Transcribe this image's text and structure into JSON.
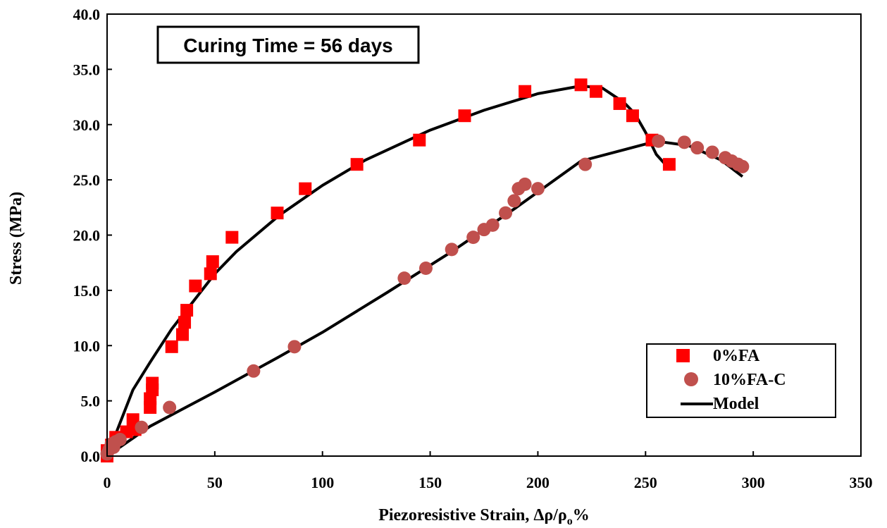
{
  "chart_data": {
    "type": "scatter",
    "title": "",
    "annotation": "Curing Time = 56 days",
    "xlabel_main": "Piezoresistive Strain,  Δρ/ρ",
    "xlabel_sub": "o",
    "xlabel_tail": "%",
    "ylabel": "Stress (MPa)",
    "xlim": [
      0,
      350
    ],
    "ylim": [
      0,
      40
    ],
    "xticks": [
      0,
      50,
      100,
      150,
      200,
      250,
      300,
      350
    ],
    "yticks": [
      "0.0",
      "5.0",
      "10.0",
      "15.0",
      "20.0",
      "25.0",
      "30.0",
      "35.0",
      "40.0"
    ],
    "legend_position": "bottom-right",
    "series": [
      {
        "name": "0%FA",
        "marker": "square",
        "color": "#ff0000",
        "points": [
          [
            0,
            0
          ],
          [
            0,
            0.5
          ],
          [
            2,
            1
          ],
          [
            4,
            1.7
          ],
          [
            9,
            2.2
          ],
          [
            12,
            3.3
          ],
          [
            13,
            2.4
          ],
          [
            20,
            4.4
          ],
          [
            20,
            5.2
          ],
          [
            21,
            6
          ],
          [
            21,
            6.6
          ],
          [
            30,
            9.9
          ],
          [
            35,
            11
          ],
          [
            36,
            12.1
          ],
          [
            37,
            13.2
          ],
          [
            41,
            15.4
          ],
          [
            48,
            16.5
          ],
          [
            49,
            17.6
          ],
          [
            58,
            19.8
          ],
          [
            79,
            22
          ],
          [
            92,
            24.2
          ],
          [
            116,
            26.4
          ],
          [
            145,
            28.6
          ],
          [
            166,
            30.8
          ],
          [
            194,
            33
          ],
          [
            220,
            33.6
          ],
          [
            227,
            33
          ],
          [
            238,
            31.9
          ],
          [
            244,
            30.8
          ],
          [
            253,
            28.6
          ],
          [
            261,
            26.4
          ]
        ]
      },
      {
        "name": "10%FA-C",
        "marker": "circle",
        "color": "#c0504d",
        "points": [
          [
            0,
            0.2
          ],
          [
            1,
            0.6
          ],
          [
            2,
            1.1
          ],
          [
            3,
            0.8
          ],
          [
            4,
            1.3
          ],
          [
            6,
            1.5
          ],
          [
            16,
            2.6
          ],
          [
            29,
            4.4
          ],
          [
            68,
            7.7
          ],
          [
            87,
            9.9
          ],
          [
            138,
            16.1
          ],
          [
            148,
            17
          ],
          [
            160,
            18.7
          ],
          [
            170,
            19.8
          ],
          [
            175,
            20.5
          ],
          [
            179,
            20.9
          ],
          [
            185,
            22
          ],
          [
            189,
            23.1
          ],
          [
            191,
            24.2
          ],
          [
            194,
            24.6
          ],
          [
            200,
            24.2
          ],
          [
            222,
            26.4
          ],
          [
            256,
            28.5
          ],
          [
            268,
            28.4
          ],
          [
            274,
            27.9
          ],
          [
            281,
            27.5
          ],
          [
            287,
            27
          ],
          [
            290,
            26.7
          ],
          [
            293,
            26.4
          ],
          [
            295,
            26.2
          ]
        ]
      },
      {
        "name": "Model",
        "marker": "line",
        "color": "#000000",
        "curves": [
          [
            [
              0,
              0
            ],
            [
              5,
              2.5
            ],
            [
              12,
              6
            ],
            [
              20,
              8.5
            ],
            [
              30,
              11.5
            ],
            [
              40,
              14
            ],
            [
              50,
              16.5
            ],
            [
              60,
              18.5
            ],
            [
              80,
              21.8
            ],
            [
              100,
              24.5
            ],
            [
              120,
              26.8
            ],
            [
              150,
              29.5
            ],
            [
              175,
              31.3
            ],
            [
              200,
              32.8
            ],
            [
              220,
              33.5
            ],
            [
              230,
              33.3
            ],
            [
              240,
              32
            ],
            [
              245,
              31
            ],
            [
              250,
              29.3
            ],
            [
              255,
              27.3
            ],
            [
              261,
              26
            ]
          ],
          [
            [
              0,
              0
            ],
            [
              20,
              2.7
            ],
            [
              50,
              5.8
            ],
            [
              80,
              9
            ],
            [
              100,
              11.2
            ],
            [
              130,
              14.8
            ],
            [
              160,
              18.5
            ],
            [
              190,
              22.5
            ],
            [
              220,
              26.7
            ],
            [
              255,
              28.5
            ],
            [
              270,
              28.1
            ],
            [
              285,
              26.8
            ],
            [
              295,
              25.3
            ]
          ]
        ]
      }
    ]
  }
}
